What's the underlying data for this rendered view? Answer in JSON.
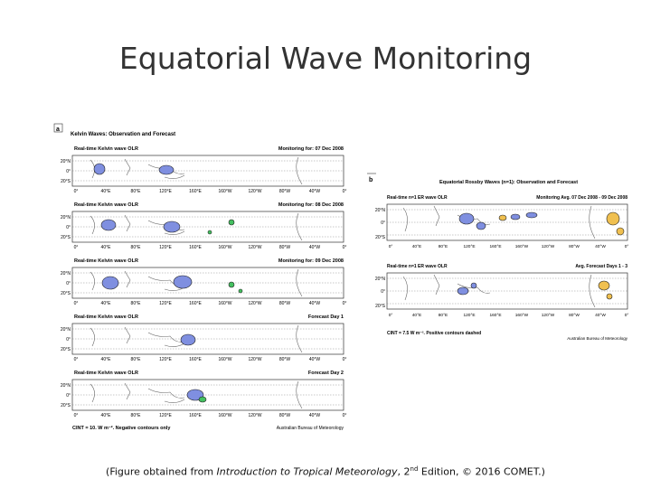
{
  "slide": {
    "title": "Equatorial Wave Monitoring"
  },
  "figure_a": {
    "label": "a",
    "title": "Kelvin Waves: Observation and Forecast",
    "panels": [
      {
        "left": "Real-time Kelvin wave OLR",
        "right": "Monitoring for: 07 Dec 2008"
      },
      {
        "left": "Real-time Kelvin wave OLR",
        "right": "Monitoring for: 08 Dec 2008"
      },
      {
        "left": "Real-time Kelvin wave OLR",
        "right": "Monitoring for: 09 Dec 2008"
      },
      {
        "left": "Real-time Kelvin wave OLR",
        "right": "Forecast Day 1"
      },
      {
        "left": "Real-time Kelvin wave OLR",
        "right": "Forecast Day 2"
      }
    ],
    "lat_labels": [
      "20°N",
      "0°",
      "20°S"
    ],
    "lon_labels": [
      "0°",
      "40°E",
      "80°E",
      "120°E",
      "160°E",
      "160°W",
      "120°W",
      "80°W",
      "40°W",
      "0°"
    ],
    "cint": "CINT = 10.  W m⁻². Negative contours only",
    "credit": "Australian Bureau of Meteorology"
  },
  "figure_b": {
    "label": "b",
    "title": "Equatorial Rossby Waves (n=1): Observation and Forecast",
    "panels": [
      {
        "left": "Real-time n=1 ER wave OLR",
        "right": "Monitoring Avg. 07 Dec 2008 - 09 Dec 2008"
      },
      {
        "left": "Real-time n=1 ER wave OLR",
        "right": "Avg. Forecast Days 1 - 3"
      }
    ],
    "lat_labels": [
      "20°N",
      "0°",
      "20°S"
    ],
    "lon_labels": [
      "0°",
      "40°E",
      "80°E",
      "120°E",
      "160°E",
      "160°W",
      "120°W",
      "80°W",
      "40°W",
      "0°"
    ],
    "cint": "CINT = 7.5 W m⁻². Positive contours dashed",
    "credit": "Australian Bureau of Meteorology"
  },
  "caption": {
    "prefix": "(Figure obtained from ",
    "book": "Introduction to Tropical Meteorology",
    "middle": ", 2",
    "sup": "nd",
    "suffix": " Edition, © 2016 COMET.)"
  },
  "colors": {
    "negative_blue": "#7f8fe0",
    "positive_green": "#44c060",
    "positive_orange": "#f0c050",
    "land": "#666666"
  }
}
